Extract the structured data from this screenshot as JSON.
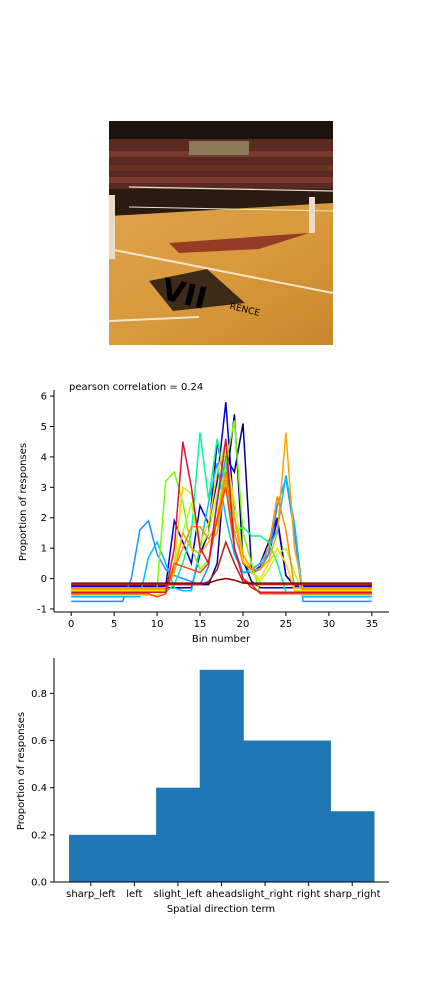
{
  "photo": {
    "alt_icon": "volleyball-court-photo",
    "court_text": "VII",
    "banner_text": "RENCE"
  },
  "chart_data": [
    {
      "type": "line",
      "title": "pearson correlation = 0.24",
      "xlabel": "Bin number",
      "ylabel": "Proportion of responses",
      "xlim": [
        -2,
        37
      ],
      "ylim": [
        -1.1,
        6.2
      ],
      "xticks": [
        0,
        5,
        10,
        15,
        20,
        25,
        30,
        35
      ],
      "yticks": [
        -1,
        0,
        1,
        2,
        3,
        4,
        5,
        6
      ],
      "x": [
        0,
        1,
        2,
        3,
        4,
        5,
        6,
        7,
        8,
        9,
        10,
        11,
        12,
        13,
        14,
        15,
        16,
        17,
        18,
        19,
        20,
        21,
        22,
        23,
        24,
        25,
        26,
        27,
        28,
        29,
        30,
        31,
        32,
        33,
        34,
        35
      ],
      "series": [
        {
          "color": "#00008b",
          "values": [
            -0.2,
            -0.2,
            -0.2,
            -0.2,
            -0.2,
            -0.2,
            -0.2,
            -0.2,
            -0.2,
            -0.2,
            -0.2,
            -0.2,
            -0.2,
            -0.2,
            -0.2,
            -0.2,
            -0.2,
            0.5,
            4.0,
            3.5,
            5.1,
            0.3,
            0.5,
            1.2,
            2.0,
            0.1,
            -0.2,
            -0.2,
            -0.2,
            -0.2,
            -0.2,
            -0.2,
            -0.2,
            -0.2,
            -0.2,
            -0.2
          ]
        },
        {
          "color": "#0000cd",
          "values": [
            -0.25,
            -0.25,
            -0.25,
            -0.25,
            -0.25,
            -0.25,
            -0.25,
            -0.25,
            -0.25,
            -0.25,
            -0.25,
            -0.25,
            1.9,
            1.2,
            0.5,
            2.4,
            1.8,
            3.2,
            5.8,
            2.0,
            0.5,
            0.2,
            0.4,
            0.8,
            1.9,
            0.1,
            -0.25,
            -0.25,
            -0.25,
            -0.25,
            -0.25,
            -0.25,
            -0.25,
            -0.25,
            -0.25,
            -0.25
          ]
        },
        {
          "color": "#000080",
          "values": [
            -0.3,
            -0.3,
            -0.3,
            -0.3,
            -0.3,
            -0.3,
            -0.3,
            -0.3,
            -0.3,
            -0.3,
            -0.3,
            -0.3,
            -0.3,
            -0.3,
            -0.3,
            0.8,
            1.5,
            4.5,
            3.0,
            5.4,
            0.6,
            -0.1,
            -0.3,
            -0.3,
            -0.3,
            -0.3,
            -0.3,
            -0.3,
            -0.3,
            -0.3,
            -0.3,
            -0.3,
            -0.3,
            -0.3,
            -0.3,
            -0.3
          ]
        },
        {
          "color": "#1e90ff",
          "values": [
            -0.75,
            -0.75,
            -0.75,
            -0.75,
            -0.75,
            -0.75,
            -0.75,
            0.0,
            1.6,
            1.9,
            0.8,
            0.3,
            0.1,
            0.0,
            -0.1,
            -0.2,
            0.4,
            2.6,
            4.0,
            1.0,
            0.2,
            0.2,
            0.3,
            0.8,
            2.4,
            3.3,
            1.5,
            -0.75,
            -0.75,
            -0.75,
            -0.75,
            -0.75,
            -0.75,
            -0.75,
            -0.75,
            -0.75
          ]
        },
        {
          "color": "#00bfff",
          "values": [
            -0.6,
            -0.6,
            -0.6,
            -0.6,
            -0.6,
            -0.6,
            -0.6,
            -0.6,
            -0.6,
            0.7,
            1.2,
            0.5,
            -0.3,
            -0.4,
            -0.4,
            1.0,
            2.5,
            3.8,
            2.0,
            0.8,
            0.2,
            0.3,
            0.5,
            1.0,
            1.6,
            3.4,
            1.8,
            -0.6,
            -0.6,
            -0.6,
            -0.6,
            -0.6,
            -0.6,
            -0.6,
            -0.6,
            -0.6
          ]
        },
        {
          "color": "#7cfc00",
          "values": [
            -0.5,
            -0.5,
            -0.5,
            -0.5,
            -0.5,
            -0.5,
            -0.5,
            -0.5,
            -0.5,
            -0.5,
            -0.3,
            3.2,
            3.5,
            2.5,
            1.0,
            0.3,
            0.6,
            2.0,
            3.8,
            5.2,
            1.5,
            0.5,
            -0.5,
            -0.5,
            -0.5,
            -0.5,
            -0.5,
            -0.5,
            -0.5,
            -0.5,
            -0.5,
            -0.5,
            -0.5,
            -0.5,
            -0.5,
            -0.5
          ]
        },
        {
          "color": "#00fa9a",
          "values": [
            -0.45,
            -0.45,
            -0.45,
            -0.45,
            -0.45,
            -0.45,
            -0.45,
            -0.45,
            -0.45,
            -0.45,
            -0.45,
            -0.45,
            -0.2,
            0.5,
            1.5,
            4.8,
            2.6,
            4.6,
            3.0,
            1.5,
            1.7,
            1.4,
            1.4,
            1.2,
            0.5,
            -0.45,
            -0.45,
            -0.45,
            -0.45,
            -0.45,
            -0.45,
            -0.45,
            -0.45,
            -0.45,
            -0.45,
            -0.45
          ]
        },
        {
          "color": "#adff2f",
          "values": [
            -0.55,
            -0.55,
            -0.55,
            -0.55,
            -0.55,
            -0.55,
            -0.55,
            -0.55,
            -0.55,
            -0.55,
            -0.55,
            -0.4,
            0.5,
            1.5,
            2.5,
            1.0,
            1.5,
            2.8,
            4.2,
            2.5,
            0.8,
            0.2,
            -0.1,
            0.3,
            0.8,
            1.0,
            0.2,
            -0.55,
            -0.55,
            -0.55,
            -0.55,
            -0.55,
            -0.55,
            -0.55,
            -0.55,
            -0.55
          ]
        },
        {
          "color": "#ffd700",
          "values": [
            -0.4,
            -0.4,
            -0.4,
            -0.4,
            -0.4,
            -0.4,
            -0.4,
            -0.4,
            -0.4,
            -0.4,
            -0.4,
            -0.4,
            0.5,
            3.0,
            2.8,
            1.2,
            1.8,
            3.5,
            4.5,
            2.0,
            0.6,
            0.2,
            0.0,
            0.5,
            1.0,
            0.5,
            -0.4,
            -0.4,
            -0.4,
            -0.4,
            -0.4,
            -0.4,
            -0.4,
            -0.4,
            -0.4,
            -0.4
          ]
        },
        {
          "color": "#ffa500",
          "values": [
            -0.35,
            -0.35,
            -0.35,
            -0.35,
            -0.35,
            -0.35,
            -0.35,
            -0.35,
            -0.35,
            -0.35,
            -0.35,
            -0.35,
            0.2,
            1.5,
            1.0,
            0.8,
            1.2,
            1.5,
            3.2,
            2.0,
            0.8,
            0.3,
            0.3,
            0.6,
            1.5,
            4.8,
            1.0,
            -0.35,
            -0.35,
            -0.35,
            -0.35,
            -0.35,
            -0.35,
            -0.35,
            -0.35,
            -0.35
          ]
        },
        {
          "color": "#ff8c00",
          "values": [
            -0.3,
            -0.3,
            -0.3,
            -0.3,
            -0.3,
            -0.3,
            -0.3,
            -0.3,
            -0.3,
            -0.3,
            -0.3,
            -0.3,
            0.3,
            1.0,
            1.7,
            1.7,
            1.3,
            1.8,
            3.5,
            1.5,
            0.5,
            0.3,
            0.3,
            1.0,
            2.7,
            1.6,
            -0.3,
            -0.3,
            -0.3,
            -0.3,
            -0.3,
            -0.3,
            -0.3,
            -0.3,
            -0.3,
            -0.3
          ]
        },
        {
          "color": "#ff4500",
          "values": [
            -0.5,
            -0.5,
            -0.5,
            -0.5,
            -0.5,
            -0.5,
            -0.5,
            -0.5,
            -0.5,
            -0.5,
            -0.6,
            -0.5,
            0.5,
            0.4,
            0.3,
            0.2,
            0.5,
            2.0,
            3.0,
            1.0,
            0.0,
            -0.2,
            -0.5,
            -0.5,
            -0.5,
            -0.5,
            -0.5,
            -0.5,
            -0.5,
            -0.5,
            -0.5,
            -0.5,
            -0.5,
            -0.5,
            -0.5,
            -0.5
          ]
        },
        {
          "color": "#dc143c",
          "values": [
            -0.45,
            -0.45,
            -0.45,
            -0.45,
            -0.45,
            -0.45,
            -0.45,
            -0.45,
            -0.45,
            -0.45,
            -0.45,
            -0.45,
            1.0,
            4.5,
            3.0,
            1.0,
            0.5,
            2.5,
            4.6,
            1.0,
            0.0,
            -0.3,
            -0.45,
            -0.45,
            -0.45,
            -0.45,
            -0.45,
            -0.45,
            -0.45,
            -0.45,
            -0.45,
            -0.45,
            -0.45,
            -0.45,
            -0.45,
            -0.45
          ]
        },
        {
          "color": "#b22222",
          "values": [
            -0.2,
            -0.2,
            -0.2,
            -0.2,
            -0.2,
            -0.2,
            -0.2,
            -0.2,
            -0.2,
            -0.2,
            -0.2,
            -0.2,
            -0.2,
            -0.2,
            -0.2,
            -0.2,
            -0.1,
            0.3,
            1.2,
            0.5,
            -0.1,
            -0.2,
            -0.2,
            -0.2,
            -0.2,
            -0.2,
            -0.2,
            -0.2,
            -0.2,
            -0.2,
            -0.2,
            -0.2,
            -0.2,
            -0.2,
            -0.2,
            -0.2
          ]
        },
        {
          "color": "#8b0000",
          "values": [
            -0.15,
            -0.15,
            -0.15,
            -0.15,
            -0.15,
            -0.15,
            -0.15,
            -0.15,
            -0.15,
            -0.15,
            -0.15,
            -0.15,
            -0.15,
            -0.15,
            -0.15,
            -0.15,
            -0.15,
            -0.05,
            0.0,
            -0.05,
            -0.15,
            -0.15,
            -0.15,
            -0.15,
            -0.15,
            -0.15,
            -0.15,
            -0.15,
            -0.15,
            -0.15,
            -0.15,
            -0.15,
            -0.15,
            -0.15,
            -0.15,
            -0.15
          ]
        }
      ]
    },
    {
      "type": "bar",
      "xlabel": "Spatial direction term",
      "ylabel": "Proportion of responses",
      "categories": [
        "sharp_left",
        "left",
        "slight_left",
        "ahead",
        "slight_right",
        "right",
        "sharp_right"
      ],
      "values": [
        0.2,
        0.2,
        0.4,
        0.9,
        0.6,
        0.6,
        0.3
      ],
      "ylim": [
        0,
        0.95
      ],
      "yticks": [
        "0.0",
        "0.2",
        "0.4",
        "0.6",
        "0.8"
      ],
      "color": "#1f77b4"
    }
  ]
}
